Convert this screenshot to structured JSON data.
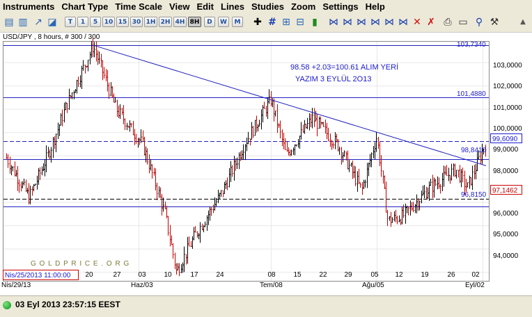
{
  "menu": [
    "Instruments",
    "Chart Type",
    "Time Scale",
    "View",
    "Edit",
    "Lines",
    "Studies",
    "Zoom",
    "Settings",
    "Help"
  ],
  "toolbar": {
    "timeframes": [
      "T",
      "1",
      "5",
      "10",
      "15",
      "30",
      "1H",
      "2H",
      "4H",
      "8H",
      "D",
      "W",
      "M"
    ],
    "selected_timeframe": "8H"
  },
  "chart": {
    "header": "USD/JPY , 8 hours, # 300 / 300",
    "watermark": "G O L D P R I C E . O R G",
    "annotation_line1": "98.58 +2.03=100.61 ALIM YERİ",
    "annotation_line2": "YAZIM 3 EYLÜL 2O13",
    "cursor_date": "Nis/25/2013 11:00:00",
    "x_dates": [
      "Nis/29/13",
      "Haz/03",
      "Tem/08",
      "Ağu/05",
      "Eyl/02"
    ],
    "x_days": [
      "20",
      "27",
      "03",
      "10",
      "17",
      "24",
      "08",
      "15",
      "22",
      "29",
      "05",
      "12",
      "19",
      "26",
      "02"
    ],
    "y_ticks": [
      "103,0000",
      "102,0000",
      "101,0000",
      "100,0000",
      "99,0000",
      "98,0000",
      "97,0000",
      "96,0000",
      "95,0000",
      "94,0000"
    ],
    "level_labels": [
      "103,7340",
      "101,4880",
      "99,6090",
      "98,8410",
      "97,1462",
      "96,8150"
    ]
  },
  "chart_data": {
    "type": "candlestick",
    "title": "USD/JPY , 8 hours, # 300 / 300",
    "ylim": [
      93.6,
      103.9
    ],
    "horizontal_lines": [
      103.734,
      101.488,
      98.841,
      96.815
    ],
    "dashed_lines": [
      99.609,
      97.1462
    ],
    "trendline": {
      "from": [
        "May/22",
        103.734
      ],
      "to": [
        "Sep/03",
        98.56
      ]
    },
    "approx_close_path": [
      {
        "date": "Apr/29",
        "value": 98.9
      },
      {
        "date": "May/05",
        "value": 97.2
      },
      {
        "date": "May/10",
        "value": 99.0
      },
      {
        "date": "May/15",
        "value": 101.2
      },
      {
        "date": "May/22",
        "value": 103.7
      },
      {
        "date": "May/28",
        "value": 101.0
      },
      {
        "date": "Jun/04",
        "value": 99.5
      },
      {
        "date": "Jun/10",
        "value": 96.5
      },
      {
        "date": "Jun/13",
        "value": 94.0
      },
      {
        "date": "Jun/18",
        "value": 95.6
      },
      {
        "date": "Jun/25",
        "value": 97.4
      },
      {
        "date": "Jul/01",
        "value": 99.5
      },
      {
        "date": "Jul/08",
        "value": 101.4
      },
      {
        "date": "Jul/12",
        "value": 99.0
      },
      {
        "date": "Jul/19",
        "value": 100.6
      },
      {
        "date": "Jul/26",
        "value": 99.4
      },
      {
        "date": "Aug/01",
        "value": 97.5
      },
      {
        "date": "Aug/05",
        "value": 99.8
      },
      {
        "date": "Aug/08",
        "value": 96.2
      },
      {
        "date": "Aug/12",
        "value": 96.4
      },
      {
        "date": "Aug/19",
        "value": 97.6
      },
      {
        "date": "Aug/26",
        "value": 98.4
      },
      {
        "date": "Aug/29",
        "value": 97.6
      },
      {
        "date": "Sep/03",
        "value": 99.6
      }
    ]
  },
  "status": {
    "datetime": "03 Eyl 2013 23:57:15 EEST",
    "color": "#1a9a2a"
  },
  "colors": {
    "line": "#2020c0",
    "up": "#000000",
    "down": "#c00000",
    "label_red": "#cc0000"
  }
}
